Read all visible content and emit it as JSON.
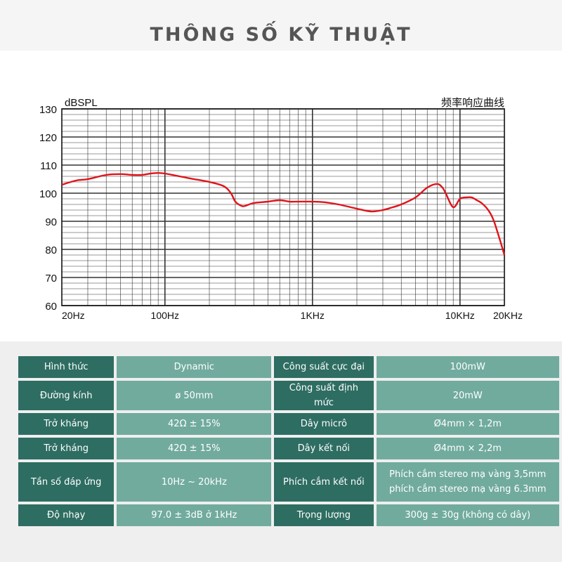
{
  "header": {
    "title": "THÔNG SỐ KỸ THUẬT"
  },
  "colors": {
    "curve": "#e0141c",
    "label_cell": "#2e6d62",
    "value_cell": "#71ab9e",
    "grid": "#333333"
  },
  "chart_data": {
    "type": "line",
    "title": "频率响应曲线",
    "ylabel": "dBSPL",
    "xscale": "log",
    "xlim": [
      20,
      20000
    ],
    "ylim": [
      60,
      130
    ],
    "yticks": [
      60,
      70,
      80,
      90,
      100,
      110,
      120,
      130
    ],
    "xticks": [
      {
        "value": 20,
        "label": "20Hz"
      },
      {
        "value": 100,
        "label": "100Hz"
      },
      {
        "value": 1000,
        "label": "1KHz"
      },
      {
        "value": 10000,
        "label": "10KHz"
      },
      {
        "value": 20000,
        "label": "20KHz"
      }
    ],
    "grid": true,
    "series": [
      {
        "x": [
          20,
          25,
          30,
          40,
          50,
          60,
          70,
          80,
          90,
          100,
          120,
          150,
          200,
          250,
          280,
          300,
          330,
          350,
          400,
          500,
          600,
          700,
          800,
          1000,
          1200,
          1500,
          2000,
          2500,
          3000,
          3500,
          4000,
          5000,
          6000,
          7000,
          7600,
          8000,
          9000,
          10000,
          11000,
          12000,
          13000,
          14000,
          15000,
          16000,
          17000,
          18000,
          19000,
          20000
        ],
        "y": [
          103,
          104.5,
          105,
          106.5,
          106.8,
          106.5,
          106.5,
          107,
          107.2,
          107,
          106.2,
          105.2,
          104,
          102.5,
          100,
          97,
          95.5,
          95.5,
          96.5,
          97,
          97.5,
          97,
          97,
          97,
          96.8,
          96,
          94.5,
          93.5,
          94,
          95,
          96,
          98.5,
          102,
          103.3,
          102,
          100,
          95,
          98,
          98.5,
          98.5,
          97.5,
          96.5,
          95,
          93,
          90,
          86,
          82,
          78
        ]
      }
    ]
  },
  "specs": [
    {
      "label": "Hình thức",
      "value": "Dynamic",
      "label2": "Công suất cực đại",
      "value2": "100mW"
    },
    {
      "label": "Đường kính",
      "value": "ø 50mm",
      "label2": "Công suất định mức",
      "value2": "20mW"
    },
    {
      "label": "Trở kháng",
      "value": "42Ω ± 15%",
      "label2": "Dây micrô",
      "value2": "Ø4mm × 1,2m"
    },
    {
      "label": "Trở kháng",
      "value": "42Ω ± 15%",
      "label2": "Dây  kết nối",
      "value2": "Ø4mm × 2,2m"
    },
    {
      "label": "Tần số đáp ứng",
      "value": "10Hz ~ 20kHz",
      "label2": "Phích cắm kết nối",
      "value2": "Phích cắm stereo mạ vàng 3,5mm",
      "value2b": "phích cắm stereo mạ vàng 6.3mm"
    },
    {
      "label": "Độ nhạy",
      "value": "97.0 ± 3dB ở 1kHz",
      "label2": "Trọng lượng",
      "value2": "300g ± 30g (không có dây)"
    }
  ]
}
